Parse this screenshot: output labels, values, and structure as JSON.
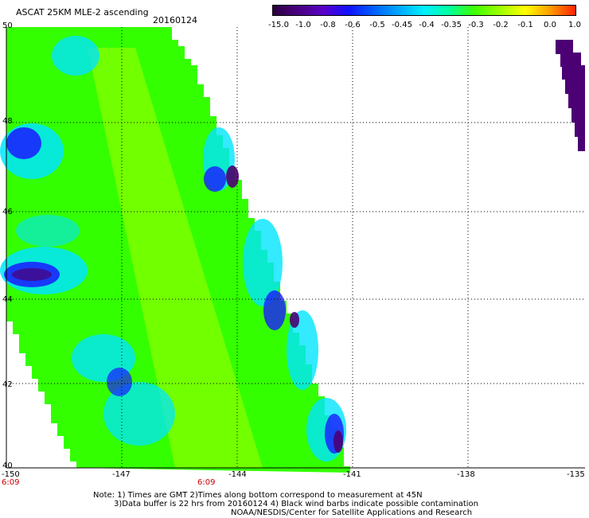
{
  "header": {
    "title": "ASCAT 25KM MLE-2 ascending",
    "date": "20160124"
  },
  "colorbar": {
    "labels": [
      "-15.0",
      "-1.0",
      "-0.8",
      "-0.6",
      "-0.5",
      "-0.45",
      "-0.4",
      "-0.35",
      "-0.3",
      "-0.2",
      "-0.1",
      "0.0",
      "1.0"
    ],
    "colors": [
      "#2a0040",
      "#4a0080",
      "#5a00c8",
      "#1010ff",
      "#0060ff",
      "#00a8ff",
      "#00f0ff",
      "#00ff9c",
      "#40ff00",
      "#9cff00",
      "#ffff00",
      "#ff9c00",
      "#ff2000"
    ]
  },
  "axes": {
    "lat_labels": [
      "50",
      "48",
      "46",
      "44",
      "42",
      "40"
    ],
    "lon_labels": [
      "-150",
      "-147",
      "-144",
      "-141",
      "-138",
      "-135"
    ],
    "time_labels": [
      "6:09",
      "6:09"
    ]
  },
  "footer": {
    "line1": "Note: 1) Times are GMT 2)Times along bottom correspond to measurement at 45N",
    "line2": "3)Data buffer is 22 hrs from 20160124 4) Black wind barbs indicate possible contamination",
    "line3": "NOAA/NESDIS/Center for Satellite Applications and Research"
  },
  "legend_colors": {
    "deep_purple": "#4b0073",
    "blue": "#1a1aff",
    "cyan": "#00e5ff",
    "green": "#33ff00",
    "yellow_green": "#88ff00"
  }
}
